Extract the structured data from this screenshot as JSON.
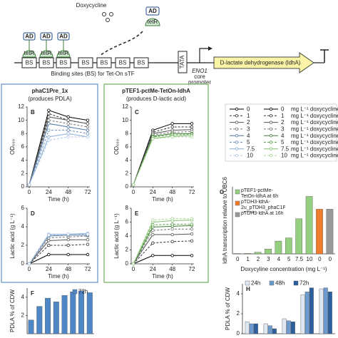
{
  "diagram": {
    "inducer": "Doxycycline",
    "ad": "AD",
    "tetr": "tetR",
    "bs": "BS",
    "bs_caption": "Binding sites (BS) for Tet-On sTF",
    "tata": "TATA",
    "promoter_1": "ENO1",
    "promoter_2": "core",
    "promoter_3": "promoter",
    "gene": "D-lactate dehydrogenase (ldhA)"
  },
  "panels": {
    "left_title": "phaC1Pre_1x",
    "left_subtitle": "(produces PDLA)",
    "right_title": "pTEF1-pctMe-TetOn-ldhA",
    "right_subtitle": "(produces D-lactic acid)"
  },
  "legend": {
    "unit": "mg L⁻¹ doxycycline"
  },
  "chart_data": [
    {
      "type": "line",
      "label": "B",
      "x_label": "Time (h)",
      "y_label": "OD₆₀₀",
      "x": [
        0,
        24,
        48,
        72
      ],
      "xlim": [
        0,
        72
      ],
      "xticks": [
        0,
        24,
        48,
        72
      ],
      "ylim": [
        0,
        12
      ],
      "yticks": [
        0,
        2,
        4,
        6,
        8,
        10,
        12
      ],
      "series": [
        {
          "name": "0",
          "color": "#000000",
          "values": [
            0.3,
            11.5,
            10.5,
            10
          ]
        },
        {
          "name": "1",
          "color": "#333333",
          "values": [
            0.3,
            11,
            10,
            9.5
          ]
        },
        {
          "name": "2",
          "color": "#555555",
          "values": [
            0.3,
            10.5,
            10,
            9.5
          ]
        },
        {
          "name": "3",
          "color": "#777777",
          "values": [
            0.3,
            10,
            9.5,
            9
          ]
        },
        {
          "name": "4",
          "color": "#4f76a3",
          "values": [
            0.3,
            9.5,
            9,
            8.5
          ]
        },
        {
          "name": "5",
          "color": "#6b90bf",
          "values": [
            0.3,
            8.5,
            8.5,
            8
          ]
        },
        {
          "name": "7.5",
          "color": "#8eaed6",
          "values": [
            0.3,
            7.5,
            8,
            7.5
          ]
        },
        {
          "name": "10",
          "color": "#b3cbe8",
          "values": [
            0.3,
            7,
            7.5,
            7.5
          ]
        }
      ]
    },
    {
      "type": "line",
      "label": "D",
      "x_label": "Time (h)",
      "y_label": "Lactic acid (g L⁻¹)",
      "x": [
        0,
        24,
        48,
        72
      ],
      "xlim": [
        0,
        72
      ],
      "xticks": [
        0,
        24,
        48,
        72
      ],
      "ylim": [
        0,
        6
      ],
      "yticks": [
        0,
        2,
        4,
        6
      ],
      "series": [
        {
          "name": "0",
          "color": "#000000",
          "values": [
            0,
            1,
            1,
            1
          ]
        },
        {
          "name": "1",
          "color": "#333333",
          "values": [
            0,
            2,
            2,
            2.1
          ]
        },
        {
          "name": "2",
          "color": "#555555",
          "values": [
            0,
            2.5,
            2.6,
            2.6
          ]
        },
        {
          "name": "3",
          "color": "#777777",
          "values": [
            0,
            2.8,
            2.9,
            3
          ]
        },
        {
          "name": "4",
          "color": "#4f76a3",
          "values": [
            0,
            3,
            3.1,
            3.1
          ]
        },
        {
          "name": "5",
          "color": "#6b90bf",
          "values": [
            0,
            3.1,
            3.2,
            3.2
          ]
        },
        {
          "name": "7.5",
          "color": "#8eaed6",
          "values": [
            0,
            3.2,
            3.2,
            3.3
          ]
        },
        {
          "name": "10",
          "color": "#b3cbe8",
          "values": [
            0,
            3.1,
            3.2,
            3.2
          ]
        }
      ]
    },
    {
      "type": "line",
      "label": "C",
      "x_label": "Time (h)",
      "y_label": "OD₆₀₀",
      "x": [
        0,
        24,
        48,
        72
      ],
      "xlim": [
        0,
        72
      ],
      "xticks": [
        0,
        24,
        48,
        72
      ],
      "ylim": [
        0,
        12
      ],
      "yticks": [
        0,
        2,
        4,
        6,
        8,
        10,
        12
      ],
      "series": [
        {
          "name": "0",
          "color": "#000000",
          "values": [
            0.3,
            8.5,
            9.5,
            9.5
          ]
        },
        {
          "name": "1",
          "color": "#333333",
          "values": [
            0.3,
            8.2,
            9,
            9
          ]
        },
        {
          "name": "2",
          "color": "#555555",
          "values": [
            0.3,
            8,
            8.5,
            8.6
          ]
        },
        {
          "name": "3",
          "color": "#777777",
          "values": [
            0.3,
            7.8,
            8.2,
            8.3
          ]
        },
        {
          "name": "4",
          "color": "#3f7f33",
          "values": [
            0.3,
            7.6,
            8,
            8
          ]
        },
        {
          "name": "5",
          "color": "#5c9e4a",
          "values": [
            0.3,
            7.5,
            7.8,
            7.9
          ]
        },
        {
          "name": "7.5",
          "color": "#84bf70",
          "values": [
            0.3,
            7.3,
            7.6,
            7.7
          ]
        },
        {
          "name": "10",
          "color": "#abd79b",
          "values": [
            0.3,
            7.2,
            7.5,
            7.5
          ]
        }
      ]
    },
    {
      "type": "line",
      "label": "E",
      "x_label": "Time (h)",
      "y_label": "Lactic acid (g L⁻¹)",
      "x": [
        0,
        24,
        48,
        72
      ],
      "xlim": [
        0,
        72
      ],
      "xticks": [
        0,
        24,
        48,
        72
      ],
      "ylim": [
        0,
        8
      ],
      "yticks": [
        0,
        2,
        4,
        6,
        8
      ],
      "series": [
        {
          "name": "0",
          "color": "#000000",
          "values": [
            0,
            1.2,
            1.2,
            1.2
          ]
        },
        {
          "name": "1",
          "color": "#333333",
          "values": [
            0,
            3,
            3.2,
            3.3
          ]
        },
        {
          "name": "2",
          "color": "#555555",
          "values": [
            0,
            4.2,
            4.2,
            4.3
          ]
        },
        {
          "name": "3",
          "color": "#777777",
          "values": [
            0,
            4.8,
            5,
            5
          ]
        },
        {
          "name": "4",
          "color": "#3f7f33",
          "values": [
            0,
            5.3,
            5.4,
            5.5
          ]
        },
        {
          "name": "5",
          "color": "#5c9e4a",
          "values": [
            0,
            5.6,
            5.7,
            5.7
          ]
        },
        {
          "name": "7.5",
          "color": "#84bf70",
          "values": [
            0,
            6,
            6.2,
            6.3
          ]
        },
        {
          "name": "10",
          "color": "#abd79b",
          "values": [
            0,
            6.3,
            6.5,
            6.5
          ]
        }
      ]
    },
    {
      "type": "bar",
      "label": "F",
      "y_label": "PDLA % of CDW",
      "categories": [
        null,
        null,
        null,
        null,
        null,
        null,
        null,
        null
      ],
      "ylim": [
        0,
        5
      ],
      "yticks": [
        2,
        4
      ],
      "legend_position": "upper right",
      "series": [
        {
          "name": "72h",
          "color": "#4f86c6",
          "values": [
            1.5,
            3,
            3.9,
            3.5,
            4.2,
            4.6,
            4.7,
            4.5
          ]
        }
      ]
    },
    {
      "type": "bar",
      "label": "G",
      "x_label": "Doxycyline concentration (mg L⁻¹)",
      "y_label": "ldhA transcription relative to UBC6",
      "categories": [
        "0",
        "1",
        "2",
        "3",
        "4",
        "5",
        "7.5",
        "10",
        "0",
        "0"
      ],
      "ylim": [
        0,
        42
      ],
      "legend_position": "upper left",
      "series": [
        {
          "name": "pTEF1-pctMe-TetOn-ldhA at 6h",
          "color": "#93cf7e",
          "values": [
            0.2,
            0.3,
            1,
            3,
            8,
            10,
            22,
            36,
            null,
            null
          ]
        },
        {
          "name": "pTDH3-ldhA-2u_pTDH3_phaC1Pre at 16h",
          "color": "#ef7d2d",
          "values": [
            null,
            null,
            null,
            null,
            null,
            null,
            null,
            null,
            28,
            null
          ]
        },
        {
          "name": "pTDH3-ldhA at 16h",
          "color": "#9a9a9a",
          "values": [
            null,
            null,
            null,
            null,
            null,
            null,
            null,
            null,
            null,
            28
          ]
        }
      ]
    },
    {
      "type": "bar",
      "label": "H",
      "y_label": "PDLA % of CDW",
      "categories": [
        null,
        null,
        null,
        null,
        null
      ],
      "ylim": [
        0,
        5
      ],
      "yticks": [
        0,
        2,
        4
      ],
      "legend_position": "top",
      "series": [
        {
          "name": "24h",
          "color": "#dfe7f2",
          "values": [
            1.2,
            1,
            1.5,
            3.9,
            4.5
          ]
        },
        {
          "name": "48h",
          "color": "#6d9bd0",
          "values": [
            1,
            0.8,
            1.3,
            4.2,
            4.6
          ]
        },
        {
          "name": "72h",
          "color": "#2c5f9e",
          "values": [
            1,
            0.5,
            1.2,
            4.6,
            4.2
          ]
        }
      ]
    }
  ]
}
